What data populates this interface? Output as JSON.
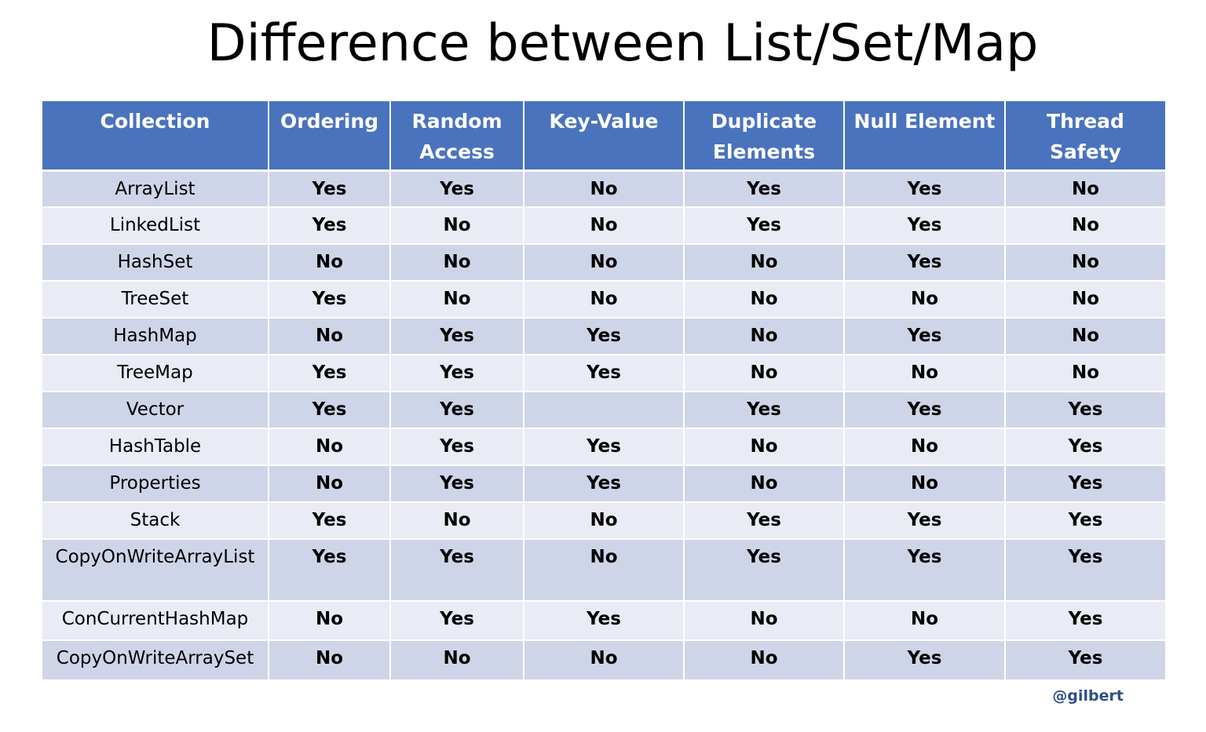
{
  "title": "Difference between List/Set/Map",
  "headers": [
    "Collection",
    "Ordering",
    "Random Access",
    "Key-Value",
    "Duplicate Elements",
    "Null Element",
    "Thread Safety"
  ],
  "header_lines": [
    [
      "Collection"
    ],
    [
      "Ordering"
    ],
    [
      "Random",
      "Access"
    ],
    [
      "Key-Value"
    ],
    [
      "Duplicate",
      "Elements"
    ],
    [
      "Null Element"
    ],
    [
      "Thread",
      "Safety"
    ]
  ],
  "rows": [
    {
      "name": "ArrayList",
      "values": [
        "Yes",
        "Yes",
        "No",
        "Yes",
        "Yes",
        "No"
      ]
    },
    {
      "name": "LinkedList",
      "values": [
        "Yes",
        "No",
        "No",
        "Yes",
        "Yes",
        "No"
      ]
    },
    {
      "name": "HashSet",
      "values": [
        "No",
        "No",
        "No",
        "No",
        "Yes",
        "No"
      ]
    },
    {
      "name": "TreeSet",
      "values": [
        "Yes",
        "No",
        "No",
        "No",
        "No",
        "No"
      ]
    },
    {
      "name": "HashMap",
      "values": [
        "No",
        "Yes",
        "Yes",
        "No",
        "Yes",
        "No"
      ]
    },
    {
      "name": "TreeMap",
      "values": [
        "Yes",
        "Yes",
        "Yes",
        "No",
        "No",
        "No"
      ]
    },
    {
      "name": "Vector",
      "values": [
        "Yes",
        "Yes",
        "",
        "Yes",
        "Yes",
        "Yes"
      ]
    },
    {
      "name": "HashTable",
      "values": [
        "No",
        "Yes",
        "Yes",
        "No",
        "No",
        "Yes"
      ]
    },
    {
      "name": "Properties",
      "values": [
        "No",
        "Yes",
        "Yes",
        "No",
        "No",
        "Yes"
      ]
    },
    {
      "name": "Stack",
      "values": [
        "Yes",
        "No",
        "No",
        "Yes",
        "Yes",
        "Yes"
      ]
    },
    {
      "name": "CopyOnWriteArrayList",
      "values": [
        "Yes",
        "Yes",
        "No",
        "Yes",
        "Yes",
        "Yes"
      ]
    },
    {
      "name": "ConCurrentHashMap",
      "values": [
        "No",
        "Yes",
        "Yes",
        "No",
        "No",
        "Yes"
      ]
    },
    {
      "name": "CopyOnWriteArraySet",
      "values": [
        "No",
        "No",
        "No",
        "No",
        "Yes",
        "Yes"
      ]
    }
  ],
  "credit": "@gilbert",
  "colors": {
    "header_bg": "#4a73be",
    "row_dark": "#cfd5e8",
    "row_light": "#e9ebf5",
    "yes": "#5a8a3c",
    "no": "#e02020",
    "credit": "#2f4f86"
  }
}
